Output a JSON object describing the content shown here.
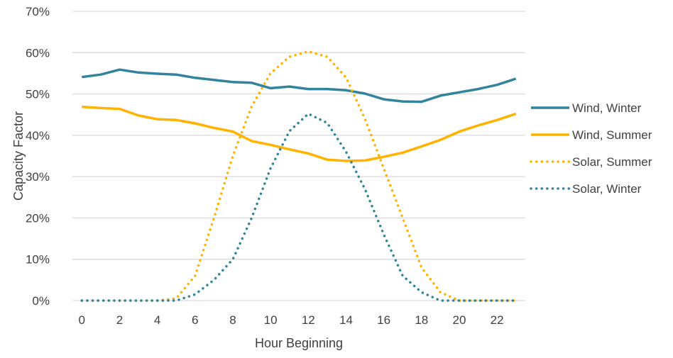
{
  "chart_data": {
    "type": "line",
    "title": "",
    "xlabel": "Hour Beginning",
    "ylabel": "Capacity Factor",
    "xlim": [
      -0.5,
      23.5
    ],
    "ylim": [
      0,
      70
    ],
    "x_ticks": [
      0,
      2,
      4,
      6,
      8,
      10,
      12,
      14,
      16,
      18,
      20,
      22
    ],
    "y_ticks": [
      0,
      10,
      20,
      30,
      40,
      50,
      60,
      70
    ],
    "y_tick_labels": [
      "0%",
      "10%",
      "20%",
      "30%",
      "40%",
      "50%",
      "60%",
      "70%"
    ],
    "grid": "horizontal",
    "legend_position": "right",
    "x": [
      0,
      1,
      2,
      3,
      4,
      5,
      6,
      7,
      8,
      9,
      10,
      11,
      12,
      13,
      14,
      15,
      16,
      17,
      18,
      19,
      20,
      21,
      22,
      23
    ],
    "series": [
      {
        "name": "Wind, Winter",
        "color": "#31849B",
        "style": "solid",
        "values": [
          54.1,
          54.7,
          55.9,
          55.2,
          54.9,
          54.7,
          53.9,
          53.4,
          52.9,
          52.7,
          51.4,
          51.8,
          51.2,
          51.2,
          50.9,
          50.1,
          48.7,
          48.2,
          48.1,
          49.6,
          50.4,
          51.2,
          52.2,
          53.7
        ]
      },
      {
        "name": "Wind, Summer",
        "color": "#FFB300",
        "style": "solid",
        "values": [
          46.9,
          46.6,
          46.4,
          44.8,
          43.9,
          43.7,
          42.9,
          41.8,
          40.9,
          38.6,
          37.7,
          36.6,
          35.6,
          34.1,
          33.8,
          33.9,
          34.8,
          35.8,
          37.3,
          38.9,
          40.9,
          42.4,
          43.7,
          45.2
        ]
      },
      {
        "name": "Solar, Summer",
        "color": "#FFB300",
        "style": "dotted",
        "values": [
          0,
          0,
          0,
          0,
          0,
          0.5,
          6,
          20,
          35,
          47,
          55,
          59,
          60.3,
          59,
          54,
          44,
          32,
          20,
          8,
          2,
          0,
          0,
          0,
          0
        ]
      },
      {
        "name": "Solar, Winter",
        "color": "#31849B",
        "style": "dotted",
        "values": [
          0,
          0,
          0,
          0,
          0,
          0,
          1.5,
          5,
          10,
          20,
          32,
          41,
          45.2,
          43,
          36,
          27,
          16,
          6,
          2,
          0,
          0,
          0,
          0,
          0
        ]
      }
    ]
  }
}
